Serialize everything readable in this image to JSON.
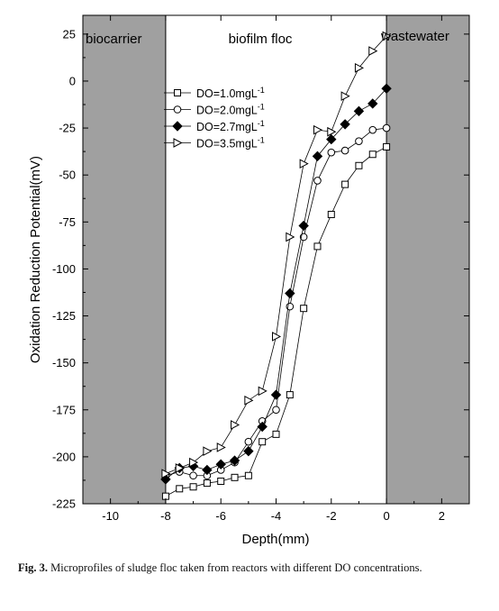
{
  "caption": {
    "label": "Fig. 3.",
    "text": "Microprofiles of sludge floc taken from reactors with different DO concentrations."
  },
  "chart_data": {
    "type": "line",
    "title": "",
    "xlabel": "Depth(mm)",
    "ylabel": "Oxidation Reduction Potential(mV)",
    "xlim": [
      -11,
      3
    ],
    "ylim": [
      -225,
      35
    ],
    "xticks": [
      -10,
      -8,
      -6,
      -4,
      -2,
      0,
      2
    ],
    "yticks": [
      25,
      0,
      -25,
      -50,
      -75,
      -100,
      -125,
      -150,
      -175,
      -200,
      -225
    ],
    "grid": false,
    "legend_position": "upper-left",
    "regions": [
      {
        "label": "biocarrier",
        "x_range": [
          -11,
          -8
        ],
        "shaded": true,
        "fill": "#a0a0a0"
      },
      {
        "label": "biofilm floc",
        "x_range": [
          -8,
          0
        ],
        "shaded": false
      },
      {
        "label": "wastewater",
        "x_range": [
          0,
          3
        ],
        "shaded": true,
        "fill": "#a0a0a0"
      }
    ],
    "series": [
      {
        "name": "DO=1.0mgL-1",
        "marker": "square-open",
        "x": [
          -8,
          -7.5,
          -7,
          -6.5,
          -6,
          -5.5,
          -5,
          -4.5,
          -4,
          -3.5,
          -3,
          -2.5,
          -2,
          -1.5,
          -1,
          -0.5,
          0
        ],
        "y": [
          -221,
          -217,
          -216,
          -214,
          -213,
          -211,
          -210,
          -192,
          -188,
          -167,
          -121,
          -88,
          -71,
          -55,
          -45,
          -39,
          -35
        ]
      },
      {
        "name": "DO=2.0mgL-1",
        "marker": "circle-open",
        "x": [
          -8,
          -7.5,
          -7,
          -6.5,
          -6,
          -5.5,
          -5,
          -4.5,
          -4,
          -3.5,
          -3,
          -2.5,
          -2,
          -1.5,
          -1,
          -0.5,
          0
        ],
        "y": [
          -210,
          -208,
          -210,
          -210,
          -207,
          -203,
          -192,
          -181,
          -175,
          -120,
          -83,
          -53,
          -38,
          -37,
          -32,
          -26,
          -25
        ]
      },
      {
        "name": "DO=2.7mgL-1",
        "marker": "diamond-filled",
        "x": [
          -8,
          -7.5,
          -7,
          -6.5,
          -6,
          -5.5,
          -5,
          -4.5,
          -4,
          -3.5,
          -3,
          -2.5,
          -2,
          -1.5,
          -1,
          -0.5,
          0
        ],
        "y": [
          -212,
          -206,
          -205,
          -207,
          -204,
          -202,
          -197,
          -184,
          -167,
          -113,
          -77,
          -40,
          -31,
          -23,
          -16,
          -12,
          -4
        ]
      },
      {
        "name": "DO=3.5mgL-1",
        "marker": "triangle-right-open",
        "x": [
          -8,
          -7.5,
          -7,
          -6.5,
          -6,
          -5.5,
          -5,
          -4.5,
          -4,
          -3.5,
          -3,
          -2.5,
          -2,
          -1.5,
          -1,
          -0.5,
          0
        ],
        "y": [
          -209,
          -206,
          -203,
          -197,
          -195,
          -183,
          -170,
          -165,
          -136,
          -83,
          -44,
          -26,
          -27,
          -8,
          7,
          16,
          24
        ]
      }
    ]
  }
}
